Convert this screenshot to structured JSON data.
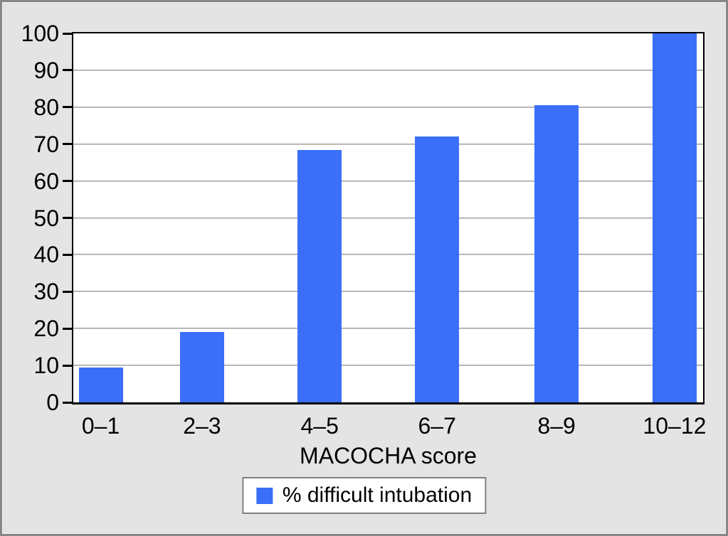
{
  "chart": {
    "x_axis_title": "MACOCHA score",
    "legend_label": "% difficult intubation",
    "colors": {
      "bar": "#3b6ff9",
      "background": "#e4e4e4",
      "plot_background": "#ffffff",
      "gridline": "#a0a0a0",
      "frame_border": "#878787",
      "legend_border": "#7f7f7f"
    }
  },
  "chart_data": {
    "type": "bar",
    "categories": [
      "0–1",
      "2–3",
      "4–5",
      "6–7",
      "8–9",
      "10–12"
    ],
    "values": [
      9.5,
      19,
      68.5,
      72,
      80.5,
      100
    ],
    "title": "",
    "xlabel": "MACOCHA score",
    "ylabel": "",
    "ylim": [
      0,
      100
    ],
    "yticks": [
      0,
      10,
      20,
      30,
      40,
      50,
      60,
      70,
      80,
      90,
      100
    ],
    "grid": true,
    "legend": [
      "% difficult intubation"
    ],
    "legend_position": "bottom",
    "bar_color": "#3b6ff9"
  }
}
